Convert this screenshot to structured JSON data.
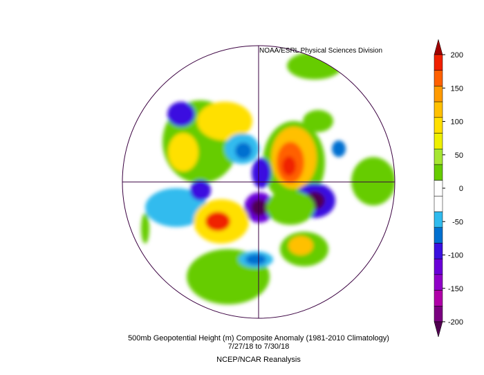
{
  "map": {
    "credit": "NOAA/ESRL Physical Sciences Division",
    "caption": [
      "500mb Geopotential Height (m) Composite Anomaly (1981-2010 Climatology)",
      "7/27/18  to 7/30/18",
      "NCEP/NCAR Reanalysis"
    ],
    "colorbar": {
      "ticks": [
        200,
        150,
        100,
        50,
        0,
        -50,
        -100,
        -150,
        -200
      ],
      "colors": [
        "#a00000",
        "#f02000",
        "#ff6000",
        "#ff9a00",
        "#ffc000",
        "#ffe000",
        "#eef000",
        "#a6e632",
        "#66cc00",
        "#ffffff",
        "#ffffff",
        "#30bbee",
        "#0070d0",
        "#3a10e0",
        "#6a00d8",
        "#9000c8",
        "#b000a8",
        "#7a0080",
        "#500050"
      ]
    }
  }
}
